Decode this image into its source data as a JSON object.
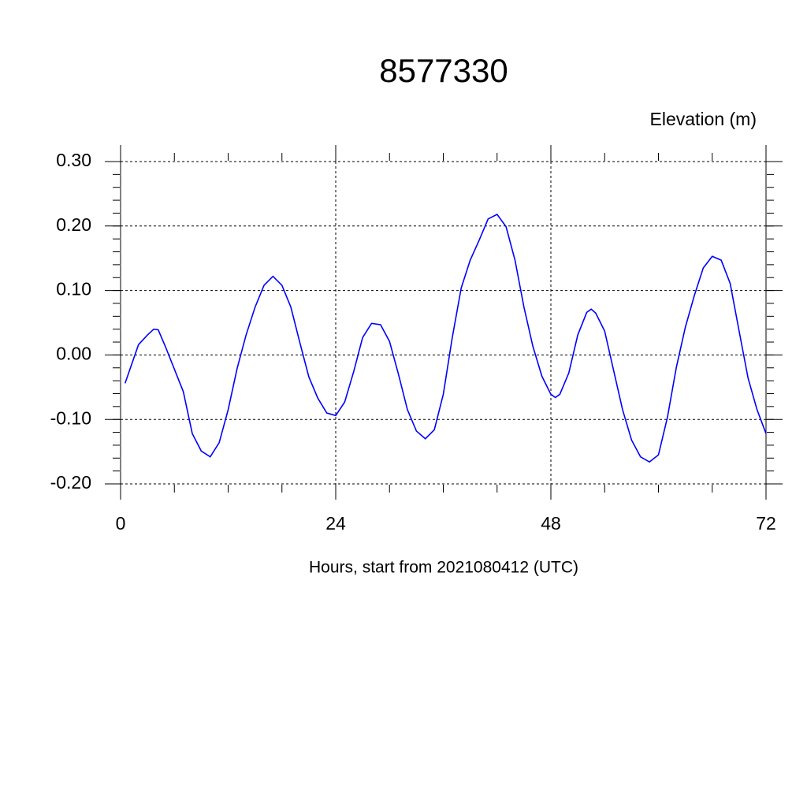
{
  "chart_data": {
    "type": "line",
    "title": "8577330",
    "subtitle": "Elevation (m)",
    "x_label": "Hours, start from 2021080412 (UTC)",
    "xlim": [
      0,
      72
    ],
    "xticks": [
      0,
      24,
      48,
      72
    ],
    "ylim": [
      -0.2,
      0.3
    ],
    "yticks": [
      {
        "value": -0.2,
        "label": "-0.20"
      },
      {
        "value": -0.1,
        "label": "-0.10"
      },
      {
        "value": 0,
        "label": "0.00"
      },
      {
        "value": 0.1,
        "label": "0.10"
      },
      {
        "value": 0.2,
        "label": "0.20"
      },
      {
        "value": 0.3,
        "label": "0.30"
      }
    ],
    "grid": true,
    "series": [
      {
        "color": "#0000ff",
        "x": [
          0.5,
          2,
          3,
          3.7,
          4.2,
          5,
          7,
          8,
          9,
          10,
          11,
          12,
          13,
          14,
          15,
          16,
          17,
          18,
          19,
          20,
          21,
          22,
          23,
          24,
          25,
          26,
          27,
          28,
          29,
          30,
          31,
          32,
          33,
          34,
          35,
          36,
          37,
          38,
          39,
          40,
          41,
          42,
          43,
          44,
          45,
          46,
          47,
          48,
          48.5,
          49,
          50,
          51,
          52,
          52.5,
          53,
          54,
          55,
          56,
          57,
          58,
          59,
          60,
          61,
          62,
          63,
          64,
          65,
          66,
          67,
          68,
          69,
          70,
          71,
          72
        ],
        "values": [
          -0.044,
          0.016,
          0.031,
          0.04,
          0.039,
          0.013,
          -0.057,
          -0.122,
          -0.149,
          -0.158,
          -0.136,
          -0.085,
          -0.021,
          0.031,
          0.074,
          0.108,
          0.122,
          0.108,
          0.074,
          0.019,
          -0.034,
          -0.067,
          -0.09,
          -0.094,
          -0.073,
          -0.026,
          0.027,
          0.049,
          0.047,
          0.021,
          -0.03,
          -0.085,
          -0.118,
          -0.13,
          -0.116,
          -0.061,
          0.027,
          0.104,
          0.147,
          0.178,
          0.211,
          0.218,
          0.199,
          0.147,
          0.074,
          0.013,
          -0.033,
          -0.061,
          -0.066,
          -0.061,
          -0.028,
          0.031,
          0.066,
          0.071,
          0.065,
          0.037,
          -0.024,
          -0.085,
          -0.132,
          -0.158,
          -0.166,
          -0.155,
          -0.097,
          -0.019,
          0.043,
          0.092,
          0.135,
          0.153,
          0.147,
          0.111,
          0.037,
          -0.036,
          -0.085,
          -0.122
        ]
      }
    ]
  }
}
